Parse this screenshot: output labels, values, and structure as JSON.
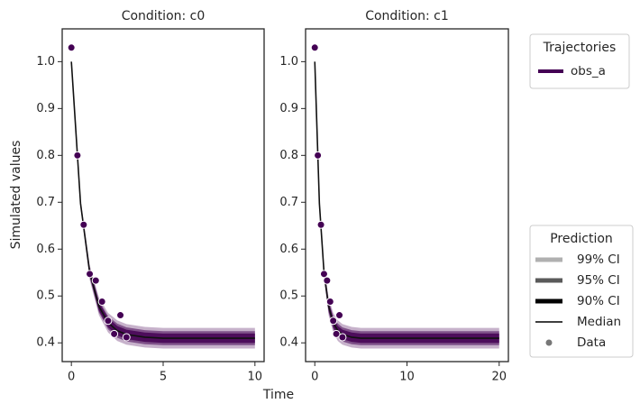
{
  "chart_data": [
    {
      "type": "line",
      "title": "Condition: c0",
      "color": "#440154",
      "xlim": [
        -0.5,
        10.5
      ],
      "xticks": [
        0,
        5,
        10
      ],
      "ylim": [
        0.36,
        1.07
      ],
      "yticks": [
        0.4,
        0.5,
        0.6,
        0.7,
        0.8,
        0.9,
        {
          "value": 1,
          "label": "1.0"
        }
      ],
      "x": [
        0,
        0.5,
        1,
        1.5,
        2,
        2.5,
        3,
        4,
        5,
        6,
        8,
        10
      ],
      "median": [
        1.0,
        0.697,
        0.55,
        0.478,
        0.443,
        0.426,
        0.418,
        0.412,
        0.41,
        0.41,
        0.41,
        0.41
      ],
      "bands": [
        {
          "opacity": 0.3,
          "lower": [
            1.0,
            0.687,
            0.534,
            0.459,
            0.422,
            0.404,
            0.396,
            0.39,
            0.388,
            0.388,
            0.388,
            0.388
          ],
          "upper": [
            1.0,
            0.707,
            0.566,
            0.497,
            0.464,
            0.448,
            0.44,
            0.434,
            0.432,
            0.432,
            0.432,
            0.432
          ]
        },
        {
          "opacity": 0.55,
          "lower": [
            1.0,
            0.69,
            0.539,
            0.465,
            0.429,
            0.411,
            0.403,
            0.397,
            0.395,
            0.395,
            0.395,
            0.395
          ],
          "upper": [
            1.0,
            0.704,
            0.561,
            0.491,
            0.457,
            0.441,
            0.433,
            0.427,
            0.425,
            0.425,
            0.425,
            0.425
          ]
        },
        {
          "opacity": 0.85,
          "lower": [
            1.0,
            0.692,
            0.542,
            0.469,
            0.433,
            0.416,
            0.408,
            0.402,
            0.4,
            0.4,
            0.4,
            0.4
          ],
          "upper": [
            1.0,
            0.702,
            0.558,
            0.487,
            0.453,
            0.436,
            0.428,
            0.422,
            0.42,
            0.42,
            0.42,
            0.42
          ]
        }
      ],
      "data": {
        "x": [
          0,
          0.33,
          0.67,
          1.0,
          1.33,
          1.67,
          2.0,
          2.33,
          2.67,
          3.0
        ],
        "values": [
          1.03,
          0.8,
          0.652,
          0.547,
          0.533,
          0.488,
          0.447,
          0.419,
          0.459,
          0.412
        ]
      }
    },
    {
      "type": "line",
      "title": "Condition: c1",
      "color": "#440154",
      "xlim": [
        -1,
        21
      ],
      "xticks": [
        0,
        10,
        20
      ],
      "ylim": [
        0.36,
        1.07
      ],
      "yticks": [
        0.4,
        0.5,
        0.6,
        0.7,
        0.8,
        0.9,
        {
          "value": 1,
          "label": "1.0"
        }
      ],
      "x": [
        0,
        0.5,
        1,
        1.5,
        2,
        2.5,
        3,
        4,
        5,
        6,
        8,
        10,
        15,
        20
      ],
      "median": [
        1.0,
        0.697,
        0.55,
        0.478,
        0.443,
        0.426,
        0.418,
        0.412,
        0.41,
        0.41,
        0.41,
        0.41,
        0.41,
        0.41
      ],
      "bands": [
        {
          "opacity": 0.3,
          "lower": [
            1.0,
            0.687,
            0.534,
            0.459,
            0.422,
            0.404,
            0.396,
            0.39,
            0.388,
            0.388,
            0.388,
            0.388,
            0.388,
            0.388
          ],
          "upper": [
            1.0,
            0.707,
            0.566,
            0.497,
            0.464,
            0.448,
            0.44,
            0.434,
            0.432,
            0.432,
            0.432,
            0.432,
            0.432,
            0.432
          ]
        },
        {
          "opacity": 0.55,
          "lower": [
            1.0,
            0.69,
            0.539,
            0.465,
            0.429,
            0.411,
            0.403,
            0.397,
            0.395,
            0.395,
            0.395,
            0.395,
            0.395,
            0.395
          ],
          "upper": [
            1.0,
            0.704,
            0.561,
            0.491,
            0.457,
            0.441,
            0.433,
            0.427,
            0.425,
            0.425,
            0.425,
            0.425,
            0.425,
            0.425
          ]
        },
        {
          "opacity": 0.85,
          "lower": [
            1.0,
            0.692,
            0.542,
            0.469,
            0.433,
            0.416,
            0.408,
            0.402,
            0.4,
            0.4,
            0.4,
            0.4,
            0.4,
            0.4
          ],
          "upper": [
            1.0,
            0.702,
            0.558,
            0.487,
            0.453,
            0.436,
            0.428,
            0.422,
            0.42,
            0.42,
            0.42,
            0.42,
            0.42,
            0.42
          ]
        }
      ],
      "data": {
        "x": [
          0,
          0.33,
          0.67,
          1.0,
          1.33,
          1.67,
          2.0,
          2.33,
          2.67,
          3.0
        ],
        "values": [
          1.03,
          0.8,
          0.652,
          0.547,
          0.533,
          0.488,
          0.447,
          0.419,
          0.459,
          0.412
        ]
      }
    }
  ],
  "x_label": "Time",
  "y_label": "Simulated values",
  "legends": {
    "trajectories": {
      "title": "Trajectories",
      "entries": [
        {
          "name": "obs_a",
          "color": "#440154"
        }
      ]
    },
    "prediction": {
      "title": "Prediction",
      "entries": [
        {
          "label": "99% CI",
          "color": "#b0b0b0",
          "style": "band"
        },
        {
          "label": "95% CI",
          "color": "#5a5a5a",
          "style": "band"
        },
        {
          "label": "90% CI",
          "color": "#000000",
          "style": "band"
        },
        {
          "label": "Median",
          "color": "#000000",
          "style": "line"
        },
        {
          "label": "Data",
          "color": "#777777",
          "style": "dot"
        }
      ]
    }
  }
}
